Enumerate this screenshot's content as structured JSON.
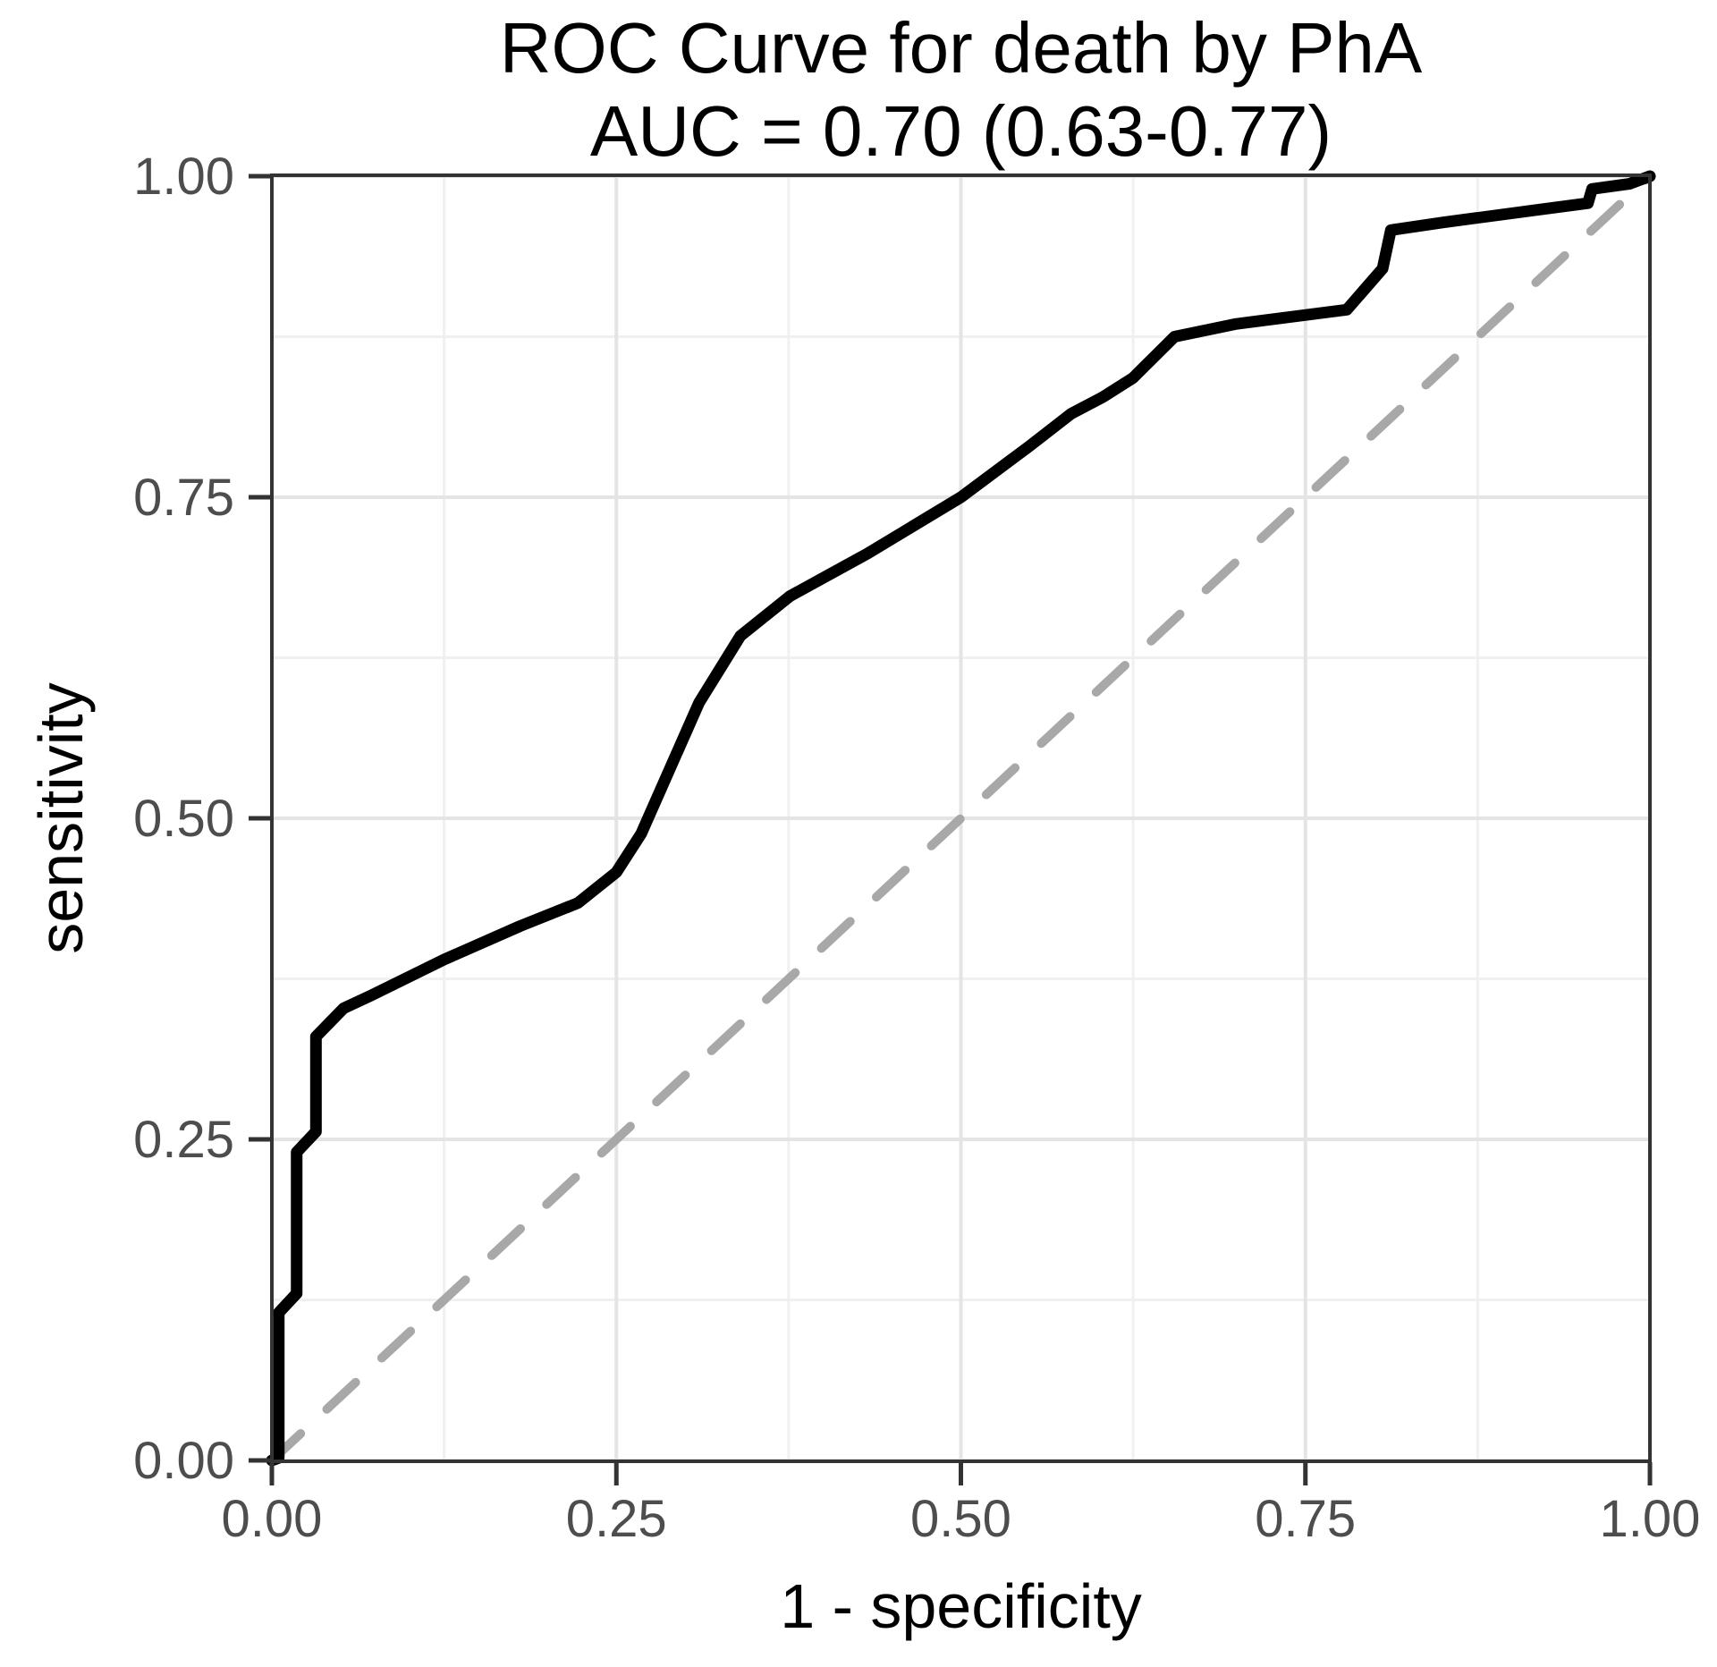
{
  "title": {
    "line1": "ROC Curve for death by PhA",
    "line2": "AUC = 0.70 (0.63-0.77)"
  },
  "axes": {
    "x_label": "1 - specificity",
    "y_label": "sensitivity"
  },
  "colors": {
    "curve": "#000000",
    "reference_line": "#a8a8a8",
    "panel_border": "#333333",
    "tick_mark": "#333333",
    "tick_label": "#4d4d4d",
    "grid_major": "#e4e4e4",
    "grid_minor": "#f0f0f0",
    "background": "#ffffff"
  },
  "chart_data": {
    "type": "line",
    "title": "ROC Curve for death by PhA",
    "subtitle": "AUC = 0.70 (0.63-0.77)",
    "auc": 0.7,
    "auc_ci_low": 0.63,
    "auc_ci_high": 0.77,
    "xlabel": "1 - specificity",
    "ylabel": "sensitivity",
    "xlim": [
      0,
      1
    ],
    "ylim": [
      0,
      1
    ],
    "x_tick_values": [
      0,
      0.25,
      0.5,
      0.75,
      1
    ],
    "x_tick_labels": [
      "0.00",
      "0.25",
      "0.50",
      "0.75",
      "1.00"
    ],
    "y_tick_values": [
      0,
      0.25,
      0.5,
      0.75,
      1
    ],
    "y_tick_labels": [
      "0.00",
      "0.25",
      "0.50",
      "0.75",
      "1.00"
    ],
    "minor_tick_values": [
      0.125,
      0.375,
      0.625,
      0.875
    ],
    "grid": "major and minor gridlines, white panel, dark full border",
    "legend": "none",
    "series": [
      {
        "name": "ROC curve",
        "style": "solid",
        "color": "#000000",
        "points": [
          [
            0.0,
            0.0
          ],
          [
            0.005,
            0.002
          ],
          [
            0.005,
            0.115
          ],
          [
            0.018,
            0.13
          ],
          [
            0.018,
            0.24
          ],
          [
            0.032,
            0.256
          ],
          [
            0.032,
            0.33
          ],
          [
            0.052,
            0.352
          ],
          [
            0.072,
            0.362
          ],
          [
            0.125,
            0.39
          ],
          [
            0.18,
            0.416
          ],
          [
            0.222,
            0.434
          ],
          [
            0.25,
            0.458
          ],
          [
            0.268,
            0.488
          ],
          [
            0.31,
            0.59
          ],
          [
            0.34,
            0.642
          ],
          [
            0.376,
            0.673
          ],
          [
            0.432,
            0.706
          ],
          [
            0.5,
            0.75
          ],
          [
            0.55,
            0.79
          ],
          [
            0.58,
            0.815
          ],
          [
            0.603,
            0.828
          ],
          [
            0.625,
            0.843
          ],
          [
            0.655,
            0.875
          ],
          [
            0.7,
            0.885
          ],
          [
            0.78,
            0.896
          ],
          [
            0.806,
            0.928
          ],
          [
            0.812,
            0.958
          ],
          [
            0.85,
            0.964
          ],
          [
            0.92,
            0.974
          ],
          [
            0.955,
            0.979
          ],
          [
            0.958,
            0.99
          ],
          [
            0.985,
            0.994
          ],
          [
            1.0,
            1.0
          ]
        ]
      },
      {
        "name": "chance reference diagonal",
        "style": "dashed",
        "color": "#a8a8a8",
        "points": [
          [
            0,
            0
          ],
          [
            1,
            1
          ]
        ]
      }
    ]
  }
}
